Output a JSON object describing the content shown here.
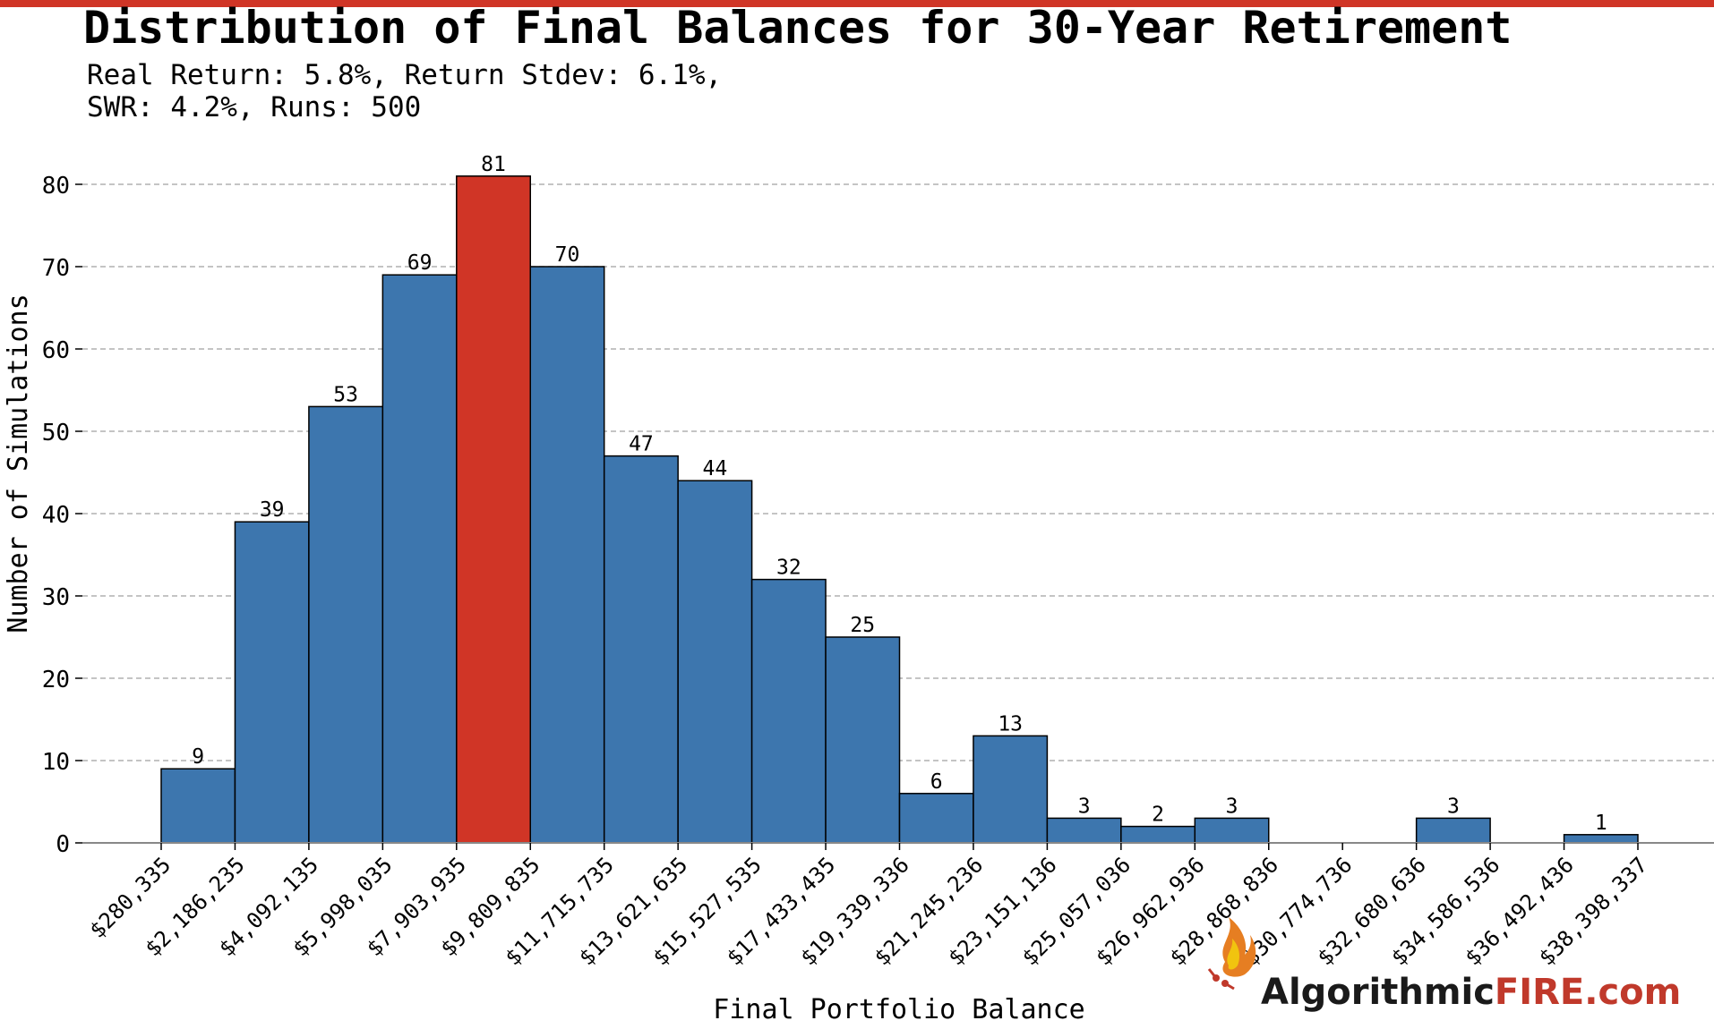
{
  "chart_data": {
    "type": "bar",
    "title": "Distribution of Final Balances for 30-Year Retirement",
    "subtitle_lines": [
      "Real Return: 5.8%, Return Stdev: 6.1%,",
      "SWR: 4.2%, Runs: 500"
    ],
    "xlabel": "Final Portfolio Balance",
    "ylabel": "Number of Simulations",
    "ylim": [
      0,
      85
    ],
    "yticks": [
      0,
      10,
      20,
      30,
      40,
      50,
      60,
      70,
      80
    ],
    "grid": "y-dashed",
    "bin_edges": [
      "$280,335",
      "$2,186,235",
      "$4,092,135",
      "$5,998,035",
      "$7,903,935",
      "$9,809,835",
      "$11,715,735",
      "$13,621,635",
      "$15,527,535",
      "$17,433,435",
      "$19,339,336",
      "$21,245,236",
      "$23,151,136",
      "$25,057,036",
      "$26,962,936",
      "$28,868,836",
      "$30,774,736",
      "$32,680,636",
      "$34,586,536",
      "$36,492,436",
      "$38,398,337"
    ],
    "values": [
      9,
      39,
      53,
      69,
      81,
      70,
      47,
      44,
      32,
      25,
      6,
      13,
      3,
      2,
      3,
      0,
      0,
      3,
      0,
      1
    ],
    "highlight_index": 4,
    "colors": {
      "bar": "#3d76ae",
      "highlight": "#d03526",
      "edge": "#000000",
      "grid": "#b0b0b0"
    }
  },
  "logo": {
    "text_main": "Algorithmic",
    "text_accent": "FIRE.com",
    "main_color": "#1a1a1a",
    "accent_color": "#c0392b"
  }
}
